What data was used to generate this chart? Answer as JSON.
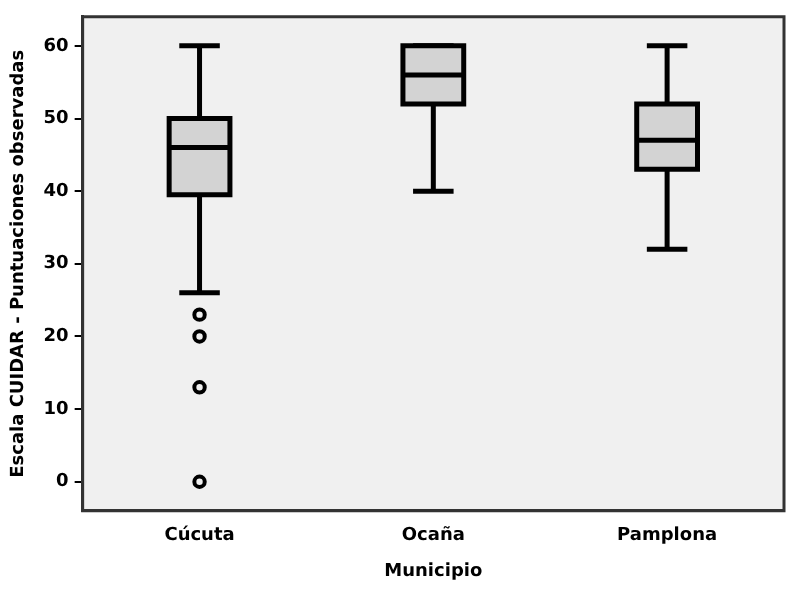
{
  "chart_data": {
    "type": "box",
    "xlabel": "Municipio",
    "ylabel": "Escala CUIDAR - Puntuaciones observadas",
    "categories": [
      "Cúcuta",
      "Ocaña",
      "Pamplona"
    ],
    "boxes": [
      {
        "low": 26,
        "q1": 39.5,
        "median": 46,
        "q3": 50,
        "high": 60,
        "outliers": [
          23,
          20,
          13,
          0
        ]
      },
      {
        "low": 40,
        "q1": 52,
        "median": 56,
        "q3": 60,
        "high": 60
      },
      {
        "low": 32,
        "q1": 43,
        "median": 47,
        "q3": 52,
        "high": 60
      }
    ],
    "color": "#d3d3d3",
    "ylim": [
      -4,
      64
    ],
    "yticks": [
      0,
      10,
      20,
      30,
      40,
      50,
      60
    ],
    "grid": false,
    "legend": false
  }
}
